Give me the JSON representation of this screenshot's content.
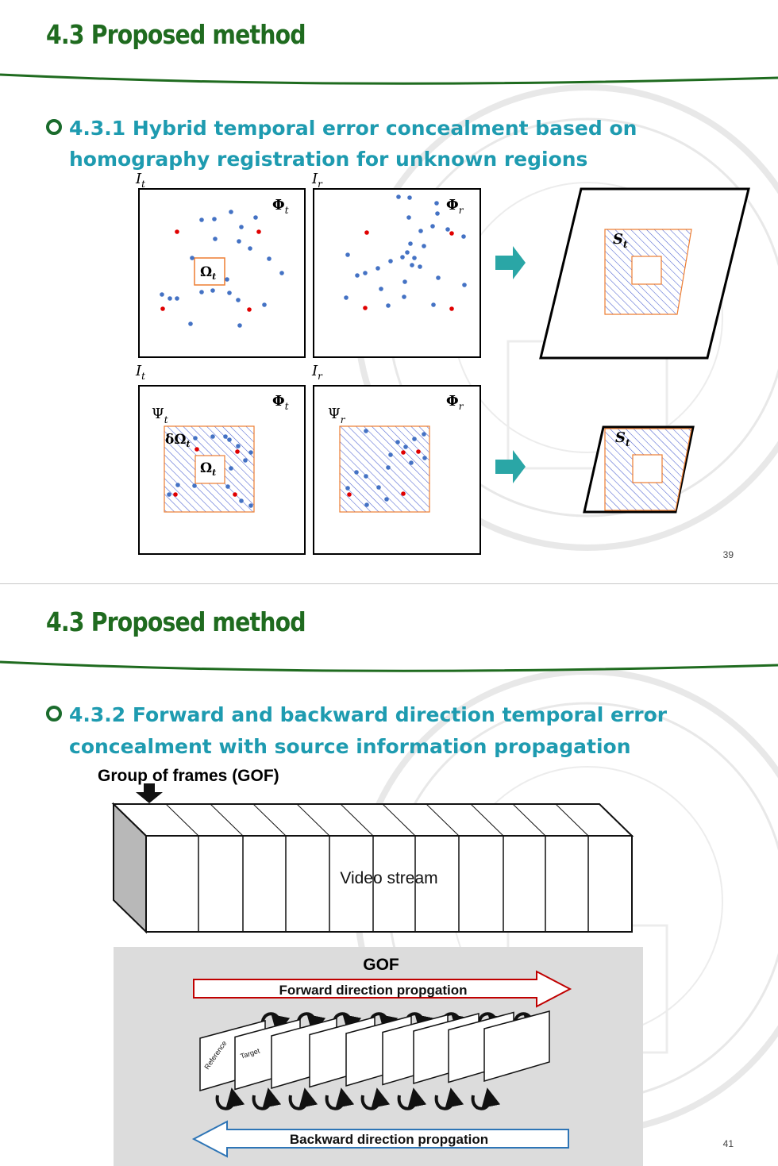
{
  "slides": [
    {
      "title": "4.3 Proposed method",
      "bullet": {
        "line1": "4.3.1 Hybrid temporal error concealment based on",
        "line2": "homography registration for unknown regions"
      },
      "page_number": "39",
      "labels": {
        "frame_current": "I",
        "frame_current_sub": "t",
        "frame_reference": "I",
        "frame_reference_sub": "r",
        "phi_current": "Φ",
        "phi_current_sub": "t",
        "phi_reference": "Φ",
        "phi_reference_sub": "r",
        "omega": "Ω",
        "omega_sub": "t",
        "delta_omega": "δΩ",
        "delta_omega_sub": "t",
        "psi_current": "Ψ",
        "psi_current_sub": "t",
        "psi_reference": "Ψ",
        "psi_reference_sub": "r",
        "s": "S",
        "s_sub": "t"
      },
      "colors": {
        "blue_point": "#4472c4",
        "red_point": "#e00000",
        "orange_border": "#ed7d31",
        "hatch": "#4a5fd0",
        "arrow_teal": "#2aa6a6"
      }
    },
    {
      "title": "4.3 Proposed method",
      "bullet": {
        "line1": "4.3.2 Forward and backward direction temporal error",
        "line2": "concealment with source information propagation"
      },
      "page_number": "41",
      "gof_caption": "Group of frames (GOF)",
      "video_stream_label": "Video stream",
      "gof_panel_title": "GOF",
      "forward_label": "Forward direction propgation",
      "backward_label": "Backward direction propgation",
      "reference_label": "Reference",
      "target_label": "Target",
      "colors": {
        "forward_arrow": "#c00000",
        "backward_arrow": "#2e75b6",
        "panel_bg": "#dcdcdc",
        "title_green": "#1f6b1f",
        "bullet_teal": "#1e9bb0"
      }
    }
  ]
}
